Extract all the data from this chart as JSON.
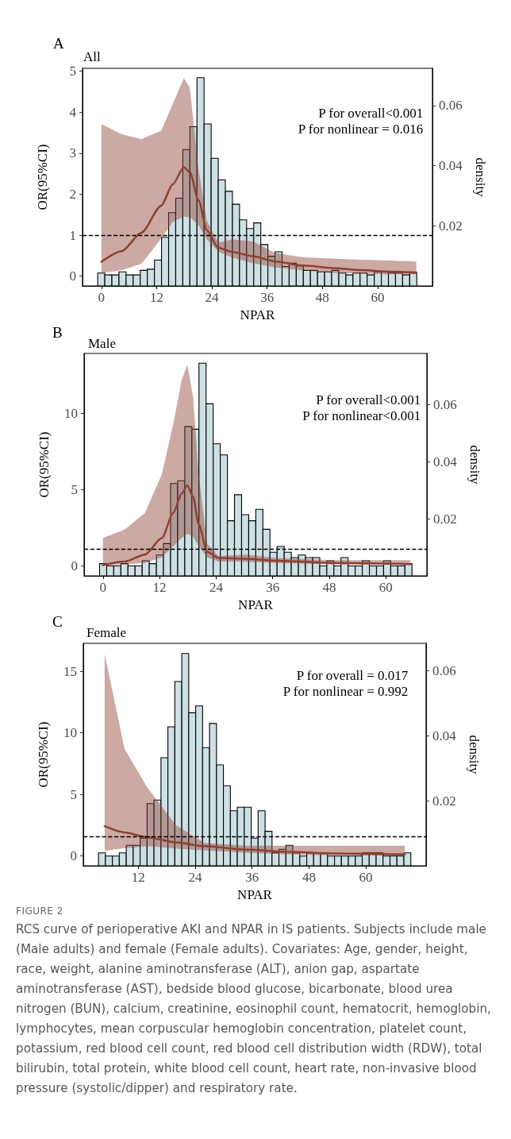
{
  "chart_data": [
    {
      "type": "line",
      "title": "A",
      "subtitle": "All",
      "xlabel": "NPAR",
      "ylabel": "OR(95%CI)",
      "y2label": "density",
      "marker": "none",
      "line_style": "solid",
      "xlim": [
        -4.1,
        71.9
      ],
      "xticks": [
        0,
        12,
        24,
        36,
        48,
        60
      ],
      "ylim": [
        -0.24,
        5.07
      ],
      "yticks": [
        0,
        1,
        2,
        3,
        4,
        5
      ],
      "y2lim": [
        0,
        0.0724
      ],
      "y2ticks": [
        0.02,
        0.04,
        0.06
      ],
      "series": [
        {
          "type": "histogram",
          "axis": "y2",
          "color": "#cde0e4",
          "bins": [
            -0.8,
            0.74,
            2.28,
            3.82,
            5.36,
            6.9,
            8.44,
            9.98,
            11.52,
            13.06,
            14.6,
            16.14,
            17.68,
            19.22,
            20.76,
            22.3,
            23.84,
            25.38,
            26.92,
            28.46,
            30.0,
            31.54,
            33.08,
            34.62,
            36.16,
            37.7,
            39.24,
            40.78,
            42.32,
            43.86,
            45.4,
            46.94,
            48.48,
            50.02,
            51.56,
            53.1,
            54.64,
            56.18,
            57.72,
            59.26,
            60.8,
            62.34,
            63.88,
            65.42,
            66.96,
            68.5
          ],
          "values": [
            0.0043,
            0.0037,
            0.0037,
            0.0047,
            0.0037,
            0.0037,
            0.0052,
            0.0056,
            0.0086,
            0.0162,
            0.0244,
            0.0292,
            0.0454,
            0.053,
            0.0693,
            0.0539,
            0.0425,
            0.0353,
            0.0315,
            0.0272,
            0.022,
            0.0191,
            0.021,
            0.0138,
            0.0099,
            0.0114,
            0.0065,
            0.0076,
            0.0067,
            0.0052,
            0.0052,
            0.0047,
            0.0047,
            0.0052,
            0.0043,
            0.0037,
            0.0043,
            0.0043,
            0.0037,
            0.0047,
            0.0047,
            0.0043,
            0.0043,
            0.0037,
            0.0043
          ]
        },
        {
          "axis": "y",
          "color": "#8e4034",
          "x": [
            0,
            4.4,
            8.7,
            13,
            15.5,
            17.9,
            19.2,
            21.1,
            22.9,
            25.4,
            28.5,
            32.8,
            37.8,
            43.9,
            50.1,
            56.3,
            62.5,
            68.4
          ],
          "values": [
            0.35,
            0.61,
            1.06,
            1.72,
            2.24,
            2.66,
            2.54,
            1.85,
            1.12,
            0.69,
            0.59,
            0.49,
            0.36,
            0.26,
            0.2,
            0.15,
            0.11,
            0.09
          ],
          "upper": [
            3.71,
            3.46,
            3.34,
            3.55,
            4.2,
            4.83,
            4.6,
            2.6,
            1.35,
            0.82,
            0.9,
            0.85,
            0.56,
            0.46,
            0.43,
            0.4,
            0.38,
            0.36
          ],
          "lower": [
            0.07,
            0.15,
            0.3,
            0.92,
            1.32,
            1.45,
            1.44,
            1.25,
            0.9,
            0.6,
            0.45,
            0.32,
            0.21,
            0.14,
            0.08,
            0.06,
            0.05,
            0.05
          ]
        }
      ],
      "ref_lines": [
        {
          "axis": "y",
          "value": 1,
          "color": "#000000",
          "line_style": "dashed"
        }
      ],
      "annotations": [
        "P for overall<0.001",
        "P for nonlinear = 0.016"
      ]
    },
    {
      "type": "line",
      "title": "B",
      "subtitle": "Male",
      "xlabel": "NPAR",
      "ylabel": "OR(95%CI)",
      "y2label": "density",
      "marker": "none",
      "line_style": "solid",
      "xlim": [
        -4,
        68.7
      ],
      "xticks": [
        0,
        12,
        24,
        36,
        48,
        60
      ],
      "ylim": [
        -0.67,
        13.93
      ],
      "yticks": [
        0,
        5,
        10
      ],
      "y2lim": [
        0,
        0.0778
      ],
      "y2ticks": [
        0.02,
        0.04,
        0.06
      ],
      "series": [
        {
          "type": "histogram",
          "axis": "y2",
          "color": "#cde0e4",
          "bins": [
            -0.72,
            0.79,
            2.29,
            3.8,
            5.3,
            6.81,
            8.32,
            9.82,
            11.33,
            12.83,
            14.34,
            15.85,
            17.35,
            18.86,
            20.36,
            21.87,
            23.38,
            24.88,
            26.39,
            27.89,
            29.4,
            30.91,
            32.41,
            33.92,
            35.42,
            36.93,
            38.44,
            39.94,
            41.45,
            42.95,
            44.46,
            45.97,
            47.47,
            48.98,
            50.48,
            51.99,
            53.5,
            55.0,
            56.51,
            58.01,
            59.52,
            61.03,
            62.53,
            64.04,
            65.54
          ],
          "values": [
            0.0043,
            0.0035,
            0.0035,
            0.0043,
            0.0035,
            0.0035,
            0.0053,
            0.0043,
            0.0073,
            0.0113,
            0.0323,
            0.0333,
            0.0522,
            0.0513,
            0.0744,
            0.0602,
            0.0462,
            0.0423,
            0.0193,
            0.0284,
            0.0214,
            0.0193,
            0.0233,
            0.0163,
            0.0083,
            0.0103,
            0.0083,
            0.0064,
            0.0073,
            0.0064,
            0.0064,
            0.0035,
            0.0053,
            0.0035,
            0.0064,
            0.0035,
            0.0035,
            0.0053,
            0.0035,
            0.0035,
            0.0053,
            0.0035,
            0.0035,
            0.0043
          ]
        },
        {
          "axis": "y",
          "color": "#8e4034",
          "x": [
            0,
            4.6,
            8.9,
            12.5,
            14.9,
            16.7,
            17.9,
            19.1,
            20.3,
            22.1,
            24.5,
            30.5,
            36.6,
            48.6,
            65.2
          ],
          "values": [
            0.04,
            0.27,
            0.73,
            1.82,
            3.46,
            4.74,
            5.28,
            4.55,
            2.73,
            0.91,
            0.51,
            0.46,
            0.33,
            0.18,
            0.11
          ],
          "upper": [
            1.82,
            2.37,
            3.46,
            6.01,
            9.29,
            12.2,
            13.2,
            11.1,
            6.0,
            1.46,
            0.64,
            0.73,
            0.51,
            0.36,
            0.36
          ],
          "lower": [
            0,
            0.09,
            0.18,
            0.55,
            1.28,
            1.82,
            2.09,
            1.91,
            1.28,
            0.55,
            0.27,
            0.26,
            0.18,
            0.09,
            0.05
          ]
        }
      ],
      "ref_lines": [
        {
          "axis": "y",
          "value": 1.1,
          "color": "#000000",
          "line_style": "dashed"
        }
      ],
      "annotations": [
        "P for overall<0.001",
        "P for nonlinear<0.001"
      ]
    },
    {
      "type": "line",
      "title": "C",
      "subtitle": "Female",
      "xlabel": "NPAR",
      "ylabel": "OR(95%CI)",
      "y2label": "density",
      "marker": "none",
      "line_style": "solid",
      "xlim": [
        0.4,
        72.7
      ],
      "xticks": [
        12,
        24,
        36,
        48,
        60
      ],
      "ylim": [
        -0.81,
        17.27
      ],
      "yticks": [
        0,
        5,
        10,
        15
      ],
      "y2lim": [
        0,
        0.0683
      ],
      "y2ticks": [
        0.02,
        0.04,
        0.06
      ],
      "series": [
        {
          "type": "histogram",
          "axis": "y2",
          "color": "#cde0e4",
          "bins": [
            3.6,
            5.06,
            6.53,
            7.99,
            9.46,
            10.92,
            12.38,
            13.85,
            15.31,
            16.78,
            18.24,
            19.7,
            21.17,
            22.63,
            24.1,
            25.56,
            27.02,
            28.49,
            29.95,
            31.42,
            32.88,
            34.34,
            35.81,
            37.27,
            38.74,
            40.2,
            41.66,
            43.13,
            44.59,
            46.06,
            47.52,
            48.98,
            50.45,
            51.91,
            53.38,
            54.84,
            56.3,
            57.77,
            59.23,
            60.7,
            62.16,
            63.62,
            65.09,
            66.55,
            68.02,
            69.48
          ],
          "values": [
            0.004,
            0.003,
            0.003,
            0.004,
            0.0063,
            0.0063,
            0.0085,
            0.0191,
            0.0202,
            0.0332,
            0.0427,
            0.0566,
            0.0652,
            0.047,
            0.0491,
            0.0363,
            0.0437,
            0.031,
            0.0246,
            0.0169,
            0.018,
            0.018,
            0.0085,
            0.0169,
            0.0106,
            0.004,
            0.0051,
            0.0063,
            0.004,
            0.003,
            0.004,
            0.004,
            0.004,
            0.003,
            0.003,
            0.003,
            0.003,
            0.003,
            0.004,
            0.004,
            0.004,
            0.003,
            0.003,
            0.003,
            0.004
          ]
        },
        {
          "axis": "y",
          "color": "#8e4034",
          "x": [
            4.9,
            9.1,
            13.9,
            19.9,
            25.9,
            34.9,
            43.9,
            52.9,
            68.2
          ],
          "values": [
            2.41,
            1.91,
            1.51,
            1.1,
            0.79,
            0.5,
            0.32,
            0.2,
            0.11
          ],
          "upper": [
            16.4,
            8.7,
            5.56,
            2.5,
            1.06,
            0.83,
            0.83,
            0.83,
            0.83
          ],
          "lower": [
            0.43,
            0.61,
            0.8,
            0.6,
            0.45,
            0.25,
            0.12,
            0.05,
            0.02
          ]
        }
      ],
      "ref_lines": [
        {
          "axis": "y",
          "value": 1.55,
          "color": "#000000",
          "line_style": "dashed"
        }
      ],
      "annotations": [
        "P for overall = 0.017",
        "P for nonlinear = 0.992",
        "FIGURE 2",
        "RCS curve of perioperative AKI and NPAR in IS patients. Subjects include male (Male adults) and female (Female adults). Covariates: Age, gender, height, race, weight, alanine aminotransferase (ALT), anion gap, aspartate aminotransferase (AST), bedside blood glucose, bicarbonate, blood urea nitrogen (BUN), calcium, creatinine, eosinophil count, hematocrit, hemoglobin, lymphocytes, mean corpuscular hemoglobin concentration, platelet count, potassium, red blood cell count, red blood cell distribution width (RDW), total bilirubin, total protein, white blood cell count, heart rate, non-invasive blood pressure (systolic/dipper) and respiratory rate."
      ]
    }
  ]
}
